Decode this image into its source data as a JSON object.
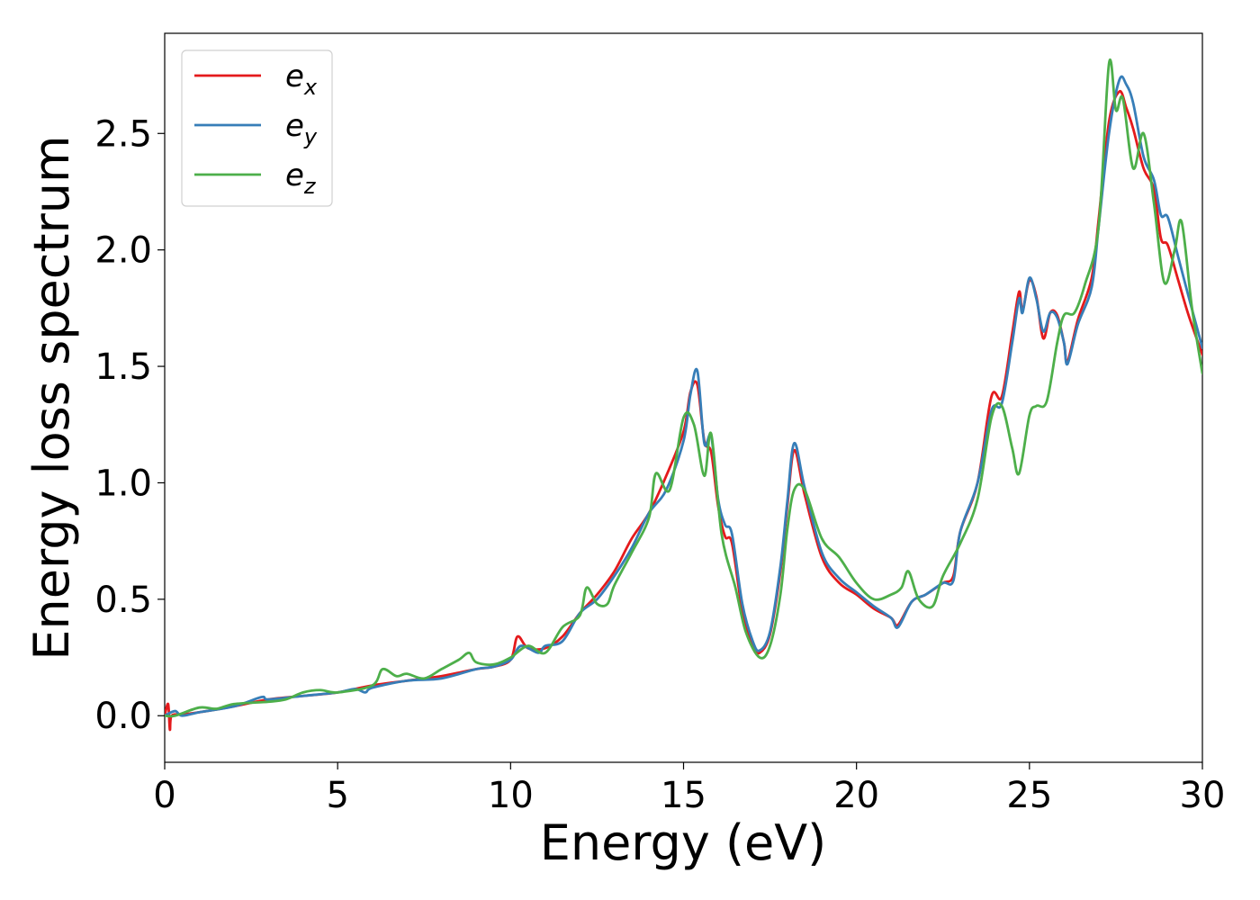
{
  "chart_data": {
    "type": "line",
    "title": "",
    "xlabel": "Energy (eV)",
    "ylabel": "Energy loss spectrum",
    "xlim": [
      0,
      30
    ],
    "ylim": [
      -0.2,
      2.93
    ],
    "x_ticks": [
      "0",
      "5",
      "10",
      "15",
      "20",
      "25",
      "30"
    ],
    "y_ticks": [
      "0.0",
      "0.5",
      "1.0",
      "1.5",
      "2.0",
      "2.5"
    ],
    "grid": false,
    "legend_position": "top-left",
    "series": [
      {
        "name": "e_x",
        "legend_base": "e",
        "legend_sub": "x",
        "color": "#e41a1c",
        "points": [
          [
            0,
            0.0
          ],
          [
            0.1,
            0.05
          ],
          [
            0.15,
            -0.06
          ],
          [
            0.2,
            0.0
          ],
          [
            0.5,
            0.005
          ],
          [
            1,
            0.015
          ],
          [
            2,
            0.04
          ],
          [
            3,
            0.07
          ],
          [
            4,
            0.085
          ],
          [
            5,
            0.1
          ],
          [
            6,
            0.13
          ],
          [
            7,
            0.15
          ],
          [
            8,
            0.17
          ],
          [
            9,
            0.2
          ],
          [
            9.5,
            0.21
          ],
          [
            10,
            0.24
          ],
          [
            10.2,
            0.34
          ],
          [
            10.5,
            0.29
          ],
          [
            11,
            0.29
          ],
          [
            11.5,
            0.34
          ],
          [
            12,
            0.44
          ],
          [
            12.5,
            0.52
          ],
          [
            13,
            0.62
          ],
          [
            13.5,
            0.76
          ],
          [
            14,
            0.87
          ],
          [
            14.5,
            1.03
          ],
          [
            15,
            1.22
          ],
          [
            15.2,
            1.39
          ],
          [
            15.4,
            1.42
          ],
          [
            15.6,
            1.18
          ],
          [
            15.8,
            1.13
          ],
          [
            16,
            0.9
          ],
          [
            16.2,
            0.77
          ],
          [
            16.4,
            0.74
          ],
          [
            16.7,
            0.45
          ],
          [
            17,
            0.3
          ],
          [
            17.2,
            0.27
          ],
          [
            17.5,
            0.35
          ],
          [
            17.8,
            0.62
          ],
          [
            18,
            0.9
          ],
          [
            18.2,
            1.14
          ],
          [
            18.5,
            0.95
          ],
          [
            19,
            0.68
          ],
          [
            19.5,
            0.57
          ],
          [
            20,
            0.52
          ],
          [
            20.5,
            0.46
          ],
          [
            21,
            0.42
          ],
          [
            21.2,
            0.39
          ],
          [
            21.6,
            0.49
          ],
          [
            22,
            0.52
          ],
          [
            22.5,
            0.57
          ],
          [
            22.8,
            0.6
          ],
          [
            23,
            0.79
          ],
          [
            23.5,
            1.0
          ],
          [
            23.9,
            1.37
          ],
          [
            24.2,
            1.37
          ],
          [
            24.5,
            1.64
          ],
          [
            24.7,
            1.82
          ],
          [
            24.8,
            1.74
          ],
          [
            25,
            1.87
          ],
          [
            25.2,
            1.8
          ],
          [
            25.4,
            1.62
          ],
          [
            25.6,
            1.73
          ],
          [
            25.8,
            1.72
          ],
          [
            26,
            1.6
          ],
          [
            26.1,
            1.52
          ],
          [
            26.4,
            1.7
          ],
          [
            26.8,
            1.88
          ],
          [
            27,
            2.13
          ],
          [
            27.3,
            2.55
          ],
          [
            27.6,
            2.68
          ],
          [
            27.8,
            2.61
          ],
          [
            28,
            2.52
          ],
          [
            28.3,
            2.35
          ],
          [
            28.6,
            2.26
          ],
          [
            28.8,
            2.05
          ],
          [
            29,
            2.02
          ],
          [
            29.3,
            1.87
          ],
          [
            29.6,
            1.72
          ],
          [
            30,
            1.55
          ]
        ]
      },
      {
        "name": "e_y",
        "legend_base": "e",
        "legend_sub": "y",
        "color": "#377eb8",
        "points": [
          [
            0,
            0.0
          ],
          [
            0.3,
            0.02
          ],
          [
            0.5,
            0.0
          ],
          [
            1,
            0.015
          ],
          [
            2,
            0.04
          ],
          [
            2.8,
            0.08
          ],
          [
            3,
            0.07
          ],
          [
            4,
            0.085
          ],
          [
            5,
            0.1
          ],
          [
            5.5,
            0.115
          ],
          [
            5.8,
            0.1
          ],
          [
            6,
            0.12
          ],
          [
            7,
            0.15
          ],
          [
            8,
            0.16
          ],
          [
            9,
            0.2
          ],
          [
            9.5,
            0.21
          ],
          [
            10,
            0.24
          ],
          [
            10.3,
            0.3
          ],
          [
            10.8,
            0.27
          ],
          [
            11,
            0.3
          ],
          [
            11.5,
            0.32
          ],
          [
            12,
            0.44
          ],
          [
            12.5,
            0.5
          ],
          [
            13,
            0.6
          ],
          [
            13.5,
            0.72
          ],
          [
            14,
            0.87
          ],
          [
            14.5,
            0.97
          ],
          [
            15,
            1.18
          ],
          [
            15.2,
            1.38
          ],
          [
            15.4,
            1.48
          ],
          [
            15.6,
            1.17
          ],
          [
            15.8,
            1.2
          ],
          [
            16,
            0.93
          ],
          [
            16.2,
            0.82
          ],
          [
            16.4,
            0.78
          ],
          [
            16.7,
            0.48
          ],
          [
            17,
            0.32
          ],
          [
            17.2,
            0.28
          ],
          [
            17.5,
            0.36
          ],
          [
            17.8,
            0.64
          ],
          [
            18,
            0.92
          ],
          [
            18.2,
            1.17
          ],
          [
            18.5,
            0.98
          ],
          [
            19,
            0.7
          ],
          [
            19.5,
            0.59
          ],
          [
            20,
            0.53
          ],
          [
            20.5,
            0.47
          ],
          [
            21,
            0.42
          ],
          [
            21.2,
            0.38
          ],
          [
            21.6,
            0.49
          ],
          [
            22,
            0.52
          ],
          [
            22.5,
            0.57
          ],
          [
            22.8,
            0.58
          ],
          [
            23,
            0.79
          ],
          [
            23.5,
            1.0
          ],
          [
            23.9,
            1.31
          ],
          [
            24.2,
            1.34
          ],
          [
            24.5,
            1.6
          ],
          [
            24.7,
            1.79
          ],
          [
            24.8,
            1.73
          ],
          [
            25,
            1.88
          ],
          [
            25.2,
            1.79
          ],
          [
            25.4,
            1.65
          ],
          [
            25.6,
            1.73
          ],
          [
            25.8,
            1.71
          ],
          [
            26,
            1.6
          ],
          [
            26.1,
            1.51
          ],
          [
            26.4,
            1.68
          ],
          [
            26.8,
            1.84
          ],
          [
            27,
            2.1
          ],
          [
            27.3,
            2.5
          ],
          [
            27.6,
            2.73
          ],
          [
            27.8,
            2.71
          ],
          [
            28,
            2.63
          ],
          [
            28.3,
            2.4
          ],
          [
            28.6,
            2.3
          ],
          [
            28.8,
            2.15
          ],
          [
            29,
            2.14
          ],
          [
            29.3,
            1.97
          ],
          [
            29.6,
            1.8
          ],
          [
            30,
            1.58
          ]
        ]
      },
      {
        "name": "e_z",
        "legend_base": "e",
        "legend_sub": "z",
        "color": "#4daf4a",
        "points": [
          [
            0,
            0.0
          ],
          [
            0.3,
            0.0
          ],
          [
            1,
            0.035
          ],
          [
            1.5,
            0.03
          ],
          [
            2,
            0.05
          ],
          [
            3,
            0.06
          ],
          [
            3.5,
            0.07
          ],
          [
            4,
            0.1
          ],
          [
            4.5,
            0.11
          ],
          [
            5,
            0.1
          ],
          [
            6,
            0.13
          ],
          [
            6.3,
            0.2
          ],
          [
            6.7,
            0.17
          ],
          [
            7,
            0.18
          ],
          [
            7.5,
            0.16
          ],
          [
            8,
            0.2
          ],
          [
            8.5,
            0.24
          ],
          [
            8.8,
            0.27
          ],
          [
            9,
            0.23
          ],
          [
            9.5,
            0.22
          ],
          [
            10,
            0.25
          ],
          [
            10.5,
            0.3
          ],
          [
            11,
            0.27
          ],
          [
            11.5,
            0.38
          ],
          [
            12,
            0.43
          ],
          [
            12.2,
            0.55
          ],
          [
            12.5,
            0.48
          ],
          [
            12.8,
            0.48
          ],
          [
            13,
            0.56
          ],
          [
            13.5,
            0.7
          ],
          [
            14,
            0.85
          ],
          [
            14.2,
            1.04
          ],
          [
            14.6,
            0.97
          ],
          [
            15,
            1.28
          ],
          [
            15.3,
            1.25
          ],
          [
            15.6,
            1.03
          ],
          [
            15.8,
            1.21
          ],
          [
            16.1,
            0.78
          ],
          [
            16.5,
            0.55
          ],
          [
            16.8,
            0.36
          ],
          [
            17.2,
            0.25
          ],
          [
            17.5,
            0.3
          ],
          [
            17.8,
            0.52
          ],
          [
            18,
            0.8
          ],
          [
            18.2,
            0.97
          ],
          [
            18.5,
            0.97
          ],
          [
            19,
            0.76
          ],
          [
            19.5,
            0.68
          ],
          [
            20,
            0.57
          ],
          [
            20.5,
            0.5
          ],
          [
            21,
            0.52
          ],
          [
            21.3,
            0.55
          ],
          [
            21.5,
            0.62
          ],
          [
            21.8,
            0.5
          ],
          [
            22.2,
            0.47
          ],
          [
            22.5,
            0.6
          ],
          [
            23,
            0.74
          ],
          [
            23.5,
            0.93
          ],
          [
            23.9,
            1.28
          ],
          [
            24.2,
            1.33
          ],
          [
            24.5,
            1.15
          ],
          [
            24.7,
            1.04
          ],
          [
            25,
            1.29
          ],
          [
            25.2,
            1.33
          ],
          [
            25.5,
            1.35
          ],
          [
            25.8,
            1.6
          ],
          [
            26,
            1.72
          ],
          [
            26.3,
            1.73
          ],
          [
            26.6,
            1.85
          ],
          [
            27,
            2.1
          ],
          [
            27.3,
            2.8
          ],
          [
            27.5,
            2.6
          ],
          [
            27.7,
            2.65
          ],
          [
            28,
            2.35
          ],
          [
            28.3,
            2.5
          ],
          [
            28.6,
            2.2
          ],
          [
            28.9,
            1.86
          ],
          [
            29.2,
            2.0
          ],
          [
            29.4,
            2.12
          ],
          [
            29.7,
            1.75
          ],
          [
            30,
            1.47
          ]
        ]
      }
    ]
  }
}
